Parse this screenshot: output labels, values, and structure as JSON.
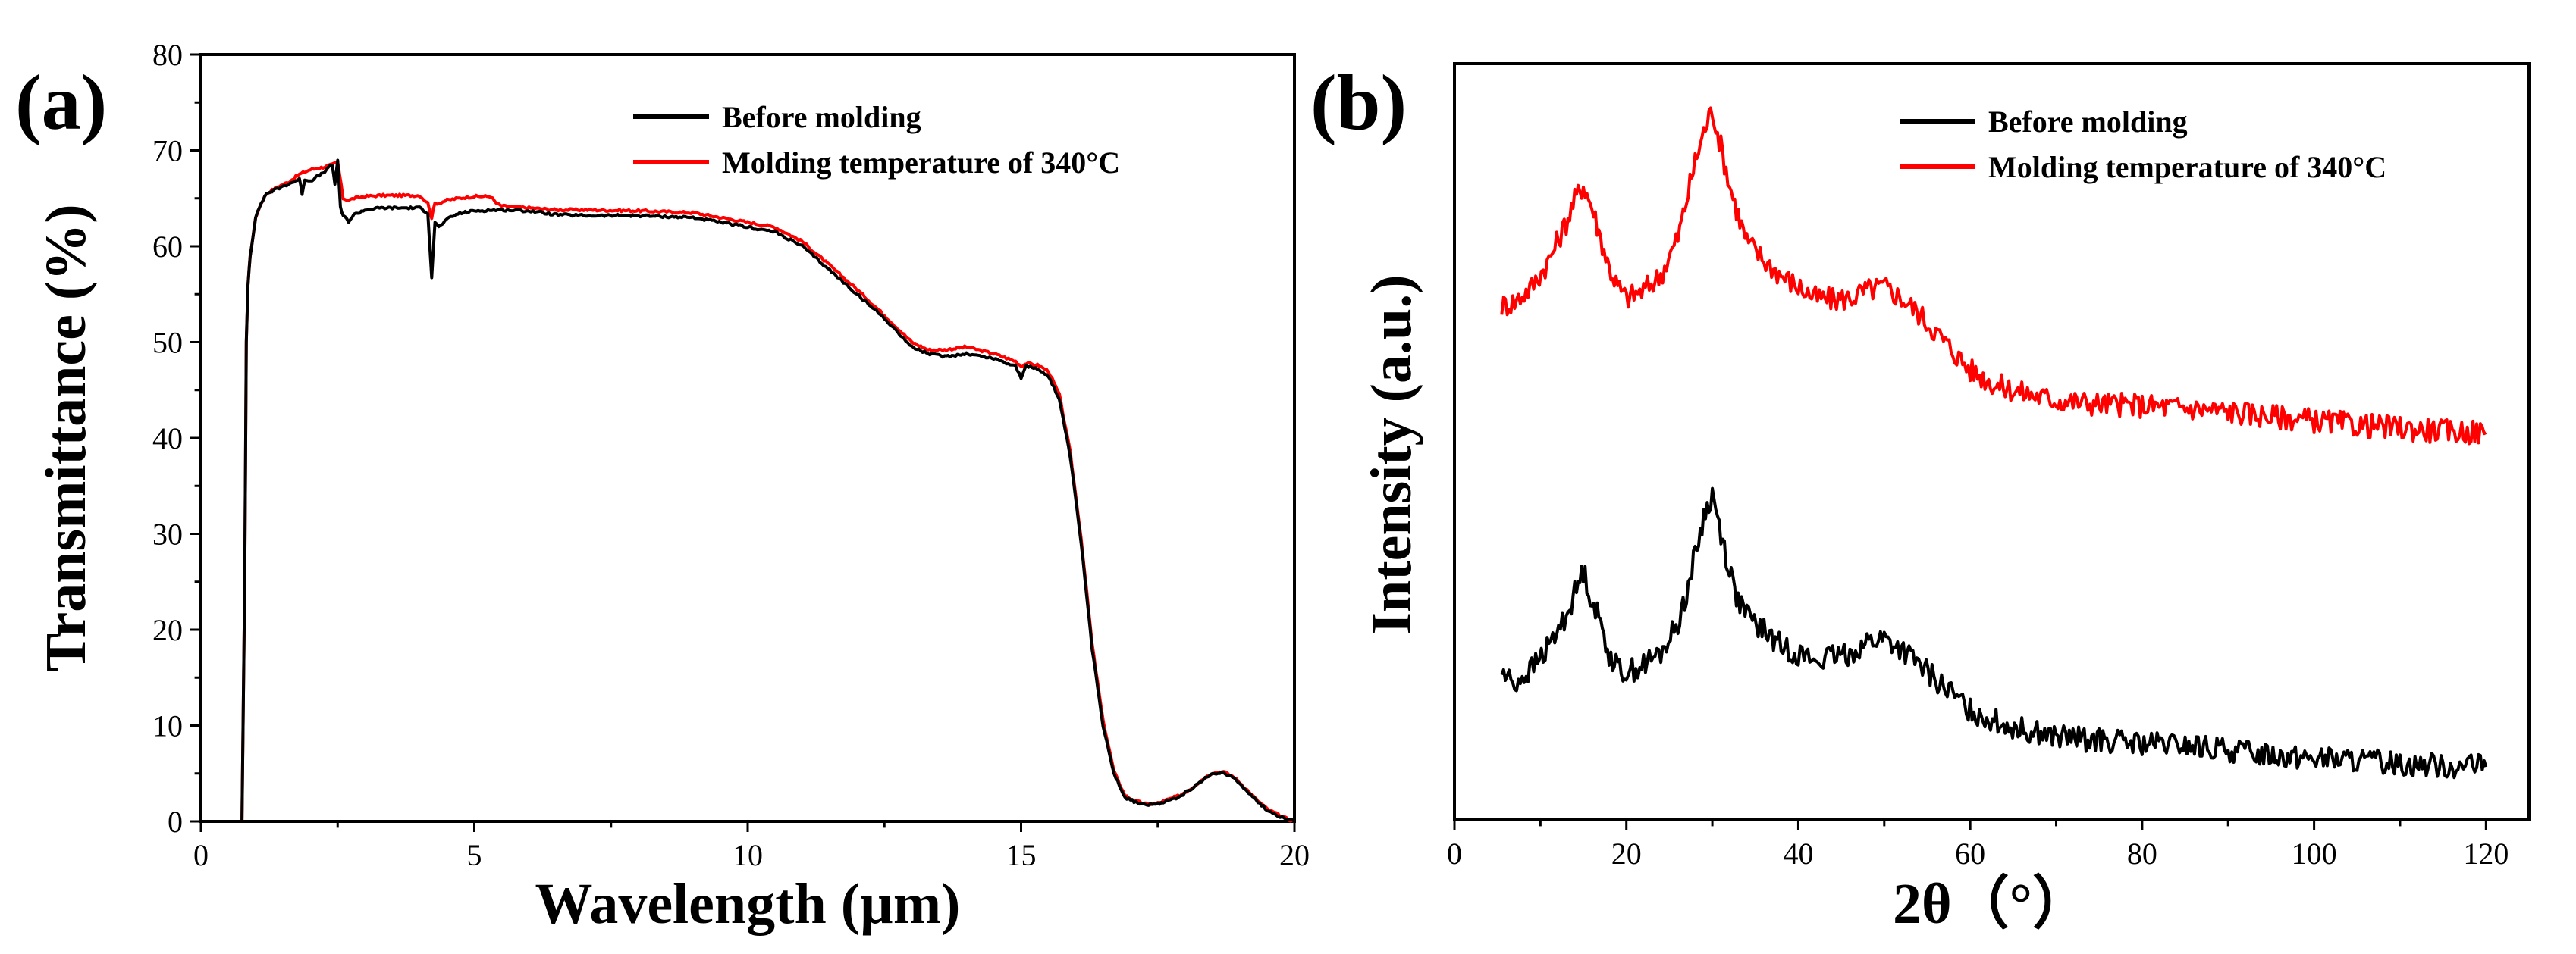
{
  "chart_data": [
    {
      "panel_label": "(a)",
      "type": "line",
      "xlabel": "Wavelength (µm)",
      "ylabel": "Transmittance (%)",
      "xlim": [
        0,
        20
      ],
      "ylim": [
        0,
        80
      ],
      "xticks": [
        "0",
        "5",
        "10",
        "15",
        "20"
      ],
      "yticks": [
        "0",
        "10",
        "20",
        "30",
        "40",
        "50",
        "60",
        "70",
        "80"
      ],
      "grid": false,
      "legend_position": "top-right",
      "series": [
        {
          "name": "Before molding",
          "color": "#000000",
          "x": [
            0.75,
            0.8,
            0.83,
            0.86,
            0.9,
            0.95,
            1.0,
            1.1,
            1.2,
            1.4,
            1.6,
            1.8,
            1.85,
            1.9,
            2.0,
            2.1,
            2.2,
            2.3,
            2.4,
            2.45,
            2.5,
            2.55,
            2.6,
            2.7,
            2.8,
            3.0,
            3.3,
            3.6,
            4.0,
            4.15,
            4.22,
            4.28,
            4.35,
            4.5,
            4.7,
            5.0,
            5.5,
            6.0,
            6.5,
            7.0,
            8.0,
            9.0,
            10.0,
            10.5,
            11.0,
            11.5,
            12.0,
            12.5,
            13.0,
            13.3,
            13.6,
            14.0,
            14.5,
            14.9,
            15.0,
            15.1,
            15.3,
            15.5,
            15.7,
            15.9,
            16.1,
            16.3,
            16.5,
            16.7,
            16.9,
            17.1,
            17.3,
            17.5,
            17.7,
            17.9,
            18.1,
            18.3,
            18.5,
            18.7,
            18.9,
            19.1,
            19.3,
            19.5,
            19.7,
            19.85,
            20.0
          ],
          "y": [
            0,
            25,
            50,
            56,
            59,
            61,
            63,
            64.5,
            65.5,
            66,
            66.5,
            67,
            65.5,
            67,
            66.8,
            67.2,
            67.5,
            68,
            68.5,
            66.5,
            69,
            64,
            63.2,
            62.6,
            63.3,
            63.8,
            64,
            64,
            64,
            63.5,
            56.8,
            62.5,
            62,
            62.8,
            63.4,
            63.7,
            63.8,
            63.7,
            63.3,
            63.2,
            63.2,
            63,
            62,
            61.5,
            60,
            57.5,
            55,
            52.5,
            49.5,
            48.8,
            48.5,
            48.8,
            48.3,
            47.5,
            46.3,
            47.5,
            47.2,
            46.5,
            44,
            38,
            29,
            18,
            10,
            5,
            2.5,
            2,
            1.7,
            1.8,
            2.2,
            2.6,
            3.3,
            4.2,
            5.0,
            5.1,
            4.5,
            3.4,
            2.2,
            1.2,
            0.6,
            0.2,
            0
          ]
        },
        {
          "name": "Molding temperature of 340°C",
          "color": "#ff0000",
          "x": [
            0.75,
            0.8,
            0.83,
            0.86,
            0.9,
            0.95,
            1.0,
            1.1,
            1.2,
            1.4,
            1.6,
            1.8,
            2.0,
            2.2,
            2.4,
            2.5,
            2.6,
            2.7,
            2.8,
            3.0,
            3.3,
            3.6,
            4.0,
            4.15,
            4.22,
            4.28,
            4.35,
            4.5,
            4.7,
            5.0,
            5.3,
            5.4,
            5.5,
            6.0,
            6.5,
            7.0,
            8.0,
            9.0,
            10.0,
            10.5,
            11.0,
            11.5,
            12.0,
            12.5,
            13.0,
            13.3,
            13.6,
            14.0,
            14.5,
            14.9,
            15.0,
            15.1,
            15.3,
            15.5,
            15.7,
            15.9,
            16.1,
            16.3,
            16.5,
            16.7,
            16.9,
            17.1,
            17.3,
            17.5,
            17.7,
            17.9,
            18.1,
            18.3,
            18.5,
            18.7,
            18.9,
            19.1,
            19.3,
            19.5,
            19.7,
            19.85,
            20.0
          ],
          "y": [
            0,
            25,
            50,
            56,
            59,
            61,
            63,
            64.5,
            65.5,
            66.2,
            66.7,
            67.5,
            68,
            68.2,
            68.5,
            68.8,
            65,
            64.8,
            65,
            65.2,
            65.3,
            65.3,
            65.3,
            64.5,
            63,
            64.5,
            64.5,
            64.8,
            65,
            65.2,
            65.2,
            64.5,
            64.2,
            64,
            63.8,
            63.8,
            63.7,
            63.5,
            62.5,
            62,
            60.5,
            58,
            55.5,
            52.8,
            50,
            49.2,
            49.2,
            49.5,
            48.8,
            48,
            47.5,
            47.8,
            47.6,
            47,
            44.5,
            38.5,
            29.5,
            18.5,
            10.5,
            5.2,
            2.7,
            2.1,
            1.8,
            1.9,
            2.3,
            2.7,
            3.4,
            4.3,
            5.1,
            5.2,
            4.6,
            3.5,
            2.3,
            1.3,
            0.7,
            0.3,
            0
          ]
        }
      ]
    },
    {
      "panel_label": "(b)",
      "type": "line",
      "xlabel": "2θ（°）",
      "ylabel": "Intensity (a.u.)",
      "xlim": [
        0,
        125
      ],
      "ylim": [
        0,
        100
      ],
      "xticks": [
        "0",
        "20",
        "40",
        "60",
        "80",
        "100",
        "120"
      ],
      "yticks": [],
      "grid": false,
      "legend_position": "top-right",
      "series": [
        {
          "name": "Before molding",
          "color": "#000000",
          "x": [
            5.5,
            7,
            9,
            11,
            13,
            14,
            15,
            16,
            17,
            18,
            19,
            20,
            22,
            24,
            26,
            27,
            28,
            29,
            30,
            31,
            32,
            33,
            34,
            36,
            38,
            40,
            42,
            44,
            46,
            48,
            50,
            52,
            54,
            56,
            58,
            60,
            63,
            66,
            70,
            75,
            80,
            85,
            90,
            95,
            100,
            105,
            110,
            115,
            120
          ],
          "y": [
            19.5,
            18,
            20,
            23,
            27,
            30,
            33,
            29,
            26,
            22,
            20,
            19.5,
            20.5,
            22,
            26,
            30,
            35,
            40,
            43,
            38,
            33,
            29,
            27,
            25,
            23,
            22,
            21,
            21.5,
            22,
            23.5,
            24,
            22.5,
            20.5,
            18.5,
            16.5,
            14.5,
            13,
            12,
            11,
            10.5,
            10,
            9.8,
            9.2,
            8.7,
            8.2,
            7.8,
            7.5,
            7.2,
            7
          ]
        },
        {
          "name": "Molding temperature of 340°C",
          "color": "#ff0000",
          "x": [
            5.5,
            7,
            9,
            11,
            13,
            14,
            15,
            16,
            17,
            18,
            19,
            20,
            22,
            24,
            26,
            27,
            28,
            29,
            30,
            31,
            32,
            33,
            34,
            36,
            38,
            40,
            42,
            44,
            46,
            48,
            50,
            52,
            54,
            56,
            58,
            60,
            63,
            66,
            70,
            75,
            80,
            85,
            90,
            95,
            100,
            105,
            110,
            115,
            120
          ],
          "y": [
            68,
            68.5,
            70.5,
            74,
            79,
            82,
            84,
            81,
            77,
            73,
            70.5,
            69,
            70,
            72,
            77,
            82,
            87,
            91,
            94,
            89,
            84,
            80,
            76.5,
            74,
            72,
            70.5,
            69,
            68.8,
            69,
            70,
            70.5,
            69,
            67,
            64.5,
            62,
            59.5,
            57.5,
            56.5,
            55.5,
            55,
            54.8,
            54.5,
            54,
            53.4,
            52.8,
            52.2,
            51.8,
            51.4,
            51.2
          ]
        }
      ]
    }
  ]
}
